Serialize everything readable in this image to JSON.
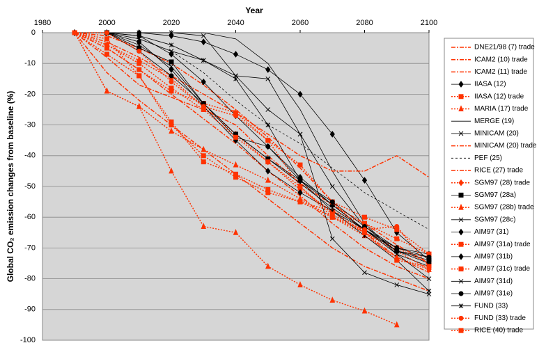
{
  "chart_data": {
    "type": "line",
    "title": "Year",
    "y_label": "Global CO₂ emission changes from baseline (%)",
    "x": [
      1990,
      2000,
      2010,
      2020,
      2030,
      2040,
      2050,
      2060,
      2070,
      2080,
      2090,
      2100
    ],
    "xlim": [
      1980,
      2100
    ],
    "xticks": [
      1980,
      2000,
      2020,
      2040,
      2060,
      2080,
      2100
    ],
    "ylim": [
      -100,
      0
    ],
    "yticks": [
      0,
      -10,
      -20,
      -30,
      -40,
      -50,
      -60,
      -70,
      -80,
      -90,
      -100
    ],
    "grid": true,
    "legend": "right",
    "series": [
      {
        "name": "DNE21/98 (7) trade",
        "color": "#ff3300",
        "dash": "dashdot",
        "marker": "none",
        "values": [
          0,
          -1,
          -5,
          -10,
          -17,
          -25,
          -34,
          -44,
          -55,
          -65,
          -73,
          -78
        ]
      },
      {
        "name": "ICAM2 (10) trade",
        "color": "#ff3300",
        "dash": "dashdot",
        "marker": "none",
        "values": [
          0,
          -5,
          -12,
          -20,
          -28,
          -36,
          -45,
          -53,
          -62,
          -70,
          -76,
          -80
        ]
      },
      {
        "name": "ICAM2 (11) trade",
        "color": "#ff3300",
        "dash": "dashdot",
        "marker": "none",
        "values": [
          0,
          -13,
          -22,
          -30,
          -38,
          -46,
          -54,
          -62,
          -70,
          -76,
          -80,
          -84
        ]
      },
      {
        "name": "IIASA  (12)",
        "color": "#000000",
        "dash": "solid",
        "marker": "diamond",
        "values": [
          0,
          0,
          0,
          -1,
          -3,
          -7,
          -12,
          -20,
          -33,
          -48,
          -65,
          -74
        ]
      },
      {
        "name": "IIASA  (12) trade",
        "color": "#ff3300",
        "dash": "dot",
        "marker": "square",
        "values": [
          0,
          -2,
          -14,
          -30,
          -40,
          -47,
          -52,
          -55,
          -60,
          -65,
          -70,
          -75
        ]
      },
      {
        "name": "MARIA  (17) trade",
        "color": "#ff3300",
        "dash": "dot",
        "marker": "triangle",
        "values": [
          0,
          -19,
          -24,
          -32,
          -38,
          -43,
          -48,
          -54,
          -60,
          -66,
          -73,
          -77
        ]
      },
      {
        "name": "MERGE  (19)",
        "color": "#000000",
        "dash": "solid",
        "marker": "none",
        "values": [
          0,
          0,
          0,
          0,
          0,
          -2,
          -10,
          -25,
          -45,
          -62,
          -72,
          -76
        ]
      },
      {
        "name": "MINICAM  (20)",
        "color": "#000000",
        "dash": "solid",
        "marker": "x",
        "values": [
          0,
          0,
          -2,
          -6,
          -9,
          -14,
          -15,
          -33,
          -50,
          -63,
          -70,
          -73
        ]
      },
      {
        "name": "MINICAM (20) trade",
        "color": "#ff3300",
        "dash": "dashdot",
        "marker": "none",
        "values": [
          0,
          -3,
          -8,
          -14,
          -20,
          -26,
          -33,
          -40,
          -45,
          -45,
          -40,
          -47
        ]
      },
      {
        "name": "PEF  (25)",
        "color": "#000000",
        "dash": "dash",
        "marker": "none",
        "values": [
          0,
          0,
          -2,
          -6,
          -13,
          -22,
          -30,
          -36,
          -44,
          -52,
          -58,
          -64
        ]
      },
      {
        "name": "RICE  (27) trade",
        "color": "#ff3300",
        "dash": "dashdot",
        "marker": "none",
        "values": [
          0,
          -8,
          -17,
          -21,
          -25,
          -30,
          -40,
          -49,
          -56,
          -62,
          -69,
          -75
        ]
      },
      {
        "name": "SGM97 (28) trade",
        "color": "#ff3300",
        "dash": "dot",
        "marker": "diamond",
        "values": [
          0,
          -4,
          -9,
          -15,
          -24,
          -33,
          -42,
          -51,
          -58,
          -65,
          -71,
          -77
        ]
      },
      {
        "name": "SGM97 (28a)",
        "color": "#000000",
        "dash": "solid",
        "marker": "square",
        "values": [
          0,
          0,
          -5,
          -9.5,
          -23,
          -33,
          -41,
          -48,
          -56,
          -64,
          -71,
          -74
        ]
      },
      {
        "name": "SGM97 (28b) trade",
        "color": "#ff3300",
        "dash": "dot",
        "marker": "triangle",
        "values": [
          0,
          -19,
          -24,
          -45,
          -63,
          -65,
          -76,
          -82,
          -87,
          -90.5,
          -95,
          null
        ]
      },
      {
        "name": "SGM97 (28c)",
        "color": "#000000",
        "dash": "solid",
        "marker": "x",
        "values": [
          0,
          0,
          0,
          0,
          -1,
          -14,
          -25,
          -33,
          -67,
          -78,
          -82,
          -85
        ]
      },
      {
        "name": "AIM97 (31)",
        "color": "#000000",
        "dash": "solid",
        "marker": "diamond",
        "values": [
          0,
          0,
          -1,
          -7,
          -16,
          -27,
          -37,
          -47,
          -56,
          -64,
          -71,
          -75
        ]
      },
      {
        "name": "AIM97 (31a) trade",
        "color": "#ff3300",
        "dash": "dot",
        "marker": "square",
        "values": [
          0,
          -5,
          -12,
          -19,
          -23,
          -26,
          -35,
          -43,
          -55,
          -60,
          -64,
          -72
        ]
      },
      {
        "name": "AIM97 (31b)",
        "color": "#000000",
        "dash": "solid",
        "marker": "diamond",
        "values": [
          0,
          0,
          -3,
          -12,
          -24,
          -35,
          -45,
          -52,
          -58,
          -64,
          -70,
          -72
        ]
      },
      {
        "name": "AIM97 (31c) trade",
        "color": "#ff3300",
        "dash": "dot",
        "marker": "square",
        "values": [
          0,
          -7,
          -14,
          -29,
          -42,
          -46,
          -51,
          -55,
          -58,
          -62,
          -67,
          -72
        ]
      },
      {
        "name": "AIM97 (31d)",
        "color": "#000000",
        "dash": "solid",
        "marker": "x",
        "values": [
          0,
          0,
          -4,
          -11,
          -23,
          -33,
          -41,
          -49,
          -57,
          -64,
          -72,
          -80
        ]
      },
      {
        "name": "AIM97 (31e)",
        "color": "#000000",
        "dash": "solid",
        "marker": "circle",
        "values": [
          0,
          0,
          -6,
          -14,
          -23,
          -34,
          -37,
          -48,
          -55,
          -63,
          -71,
          -73
        ]
      },
      {
        "name": "FUND (33)",
        "color": "#000000",
        "dash": "solid",
        "marker": "star",
        "values": [
          0,
          0,
          -1,
          -4,
          -9,
          -15,
          -30,
          -48,
          -58,
          -66,
          -74,
          -84
        ]
      },
      {
        "name": "FUND (33) trade",
        "color": "#ff3300",
        "dash": "dot",
        "marker": "circle",
        "values": [
          0,
          0,
          -6,
          -16,
          -24,
          -27,
          -35,
          -50,
          -60,
          -64,
          -63,
          -76
        ]
      },
      {
        "name": "RICE (40) trade",
        "color": "#ff3300",
        "dash": "dot",
        "marker": "square",
        "values": [
          0,
          -4,
          -10,
          -18,
          -25,
          -34,
          -42,
          -50,
          -59,
          -65,
          -74,
          -76
        ]
      }
    ]
  }
}
